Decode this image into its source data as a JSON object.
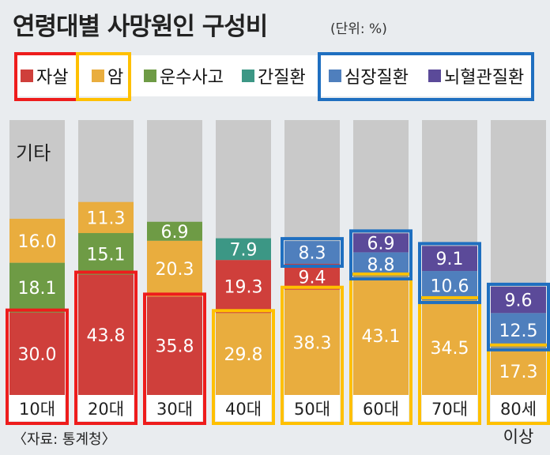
{
  "title": "연령대별 사망원인 구성비",
  "unit": "(단위: %)",
  "source": "〈자료: 통계청〉",
  "colors": {
    "suicide": "#cf3f3b",
    "cancer": "#e9ad3e",
    "traffic": "#6e9b45",
    "liver": "#3c9785",
    "heart": "#4f7fbd",
    "stroke": "#5b4a99",
    "other": "#c9c9c9",
    "highlight_red": "#ee1c1c",
    "highlight_yellow": "#ffc000",
    "highlight_blue": "#1f6fc0"
  },
  "legend": [
    {
      "key": "suicide",
      "label": "자살"
    },
    {
      "key": "cancer",
      "label": "암"
    },
    {
      "key": "traffic",
      "label": "운수사고"
    },
    {
      "key": "liver",
      "label": "간질환"
    },
    {
      "key": "heart",
      "label": "심장질환"
    },
    {
      "key": "stroke",
      "label": "뇌혈관질환"
    }
  ],
  "chart_data": {
    "type": "bar",
    "stacked": true,
    "categories": [
      "10대",
      "20대",
      "30대",
      "40대",
      "50대",
      "60대",
      "70대",
      "80세"
    ],
    "category_sublabels": [
      "",
      "",
      "",
      "",
      "",
      "",
      "",
      "이상"
    ],
    "other_label": "기타",
    "series": [
      {
        "key": "suicide",
        "name": "자살",
        "values": [
          30.0,
          43.8,
          35.8,
          19.3,
          9.4,
          null,
          null,
          null
        ],
        "labels": [
          "30.0",
          "43.8",
          "35.8",
          "19.3",
          "9.4",
          "",
          "",
          ""
        ]
      },
      {
        "key": "cancer",
        "name": "암",
        "values": [
          16.0,
          11.3,
          20.3,
          29.8,
          38.3,
          43.1,
          34.5,
          17.3
        ],
        "labels": [
          "16.0",
          "11.3",
          "20.3",
          "29.8",
          "38.3",
          "43.1",
          "34.5",
          "17.3"
        ]
      },
      {
        "key": "traffic",
        "name": "운수사고",
        "values": [
          18.1,
          15.1,
          6.9,
          null,
          null,
          null,
          null,
          null
        ],
        "labels": [
          "18.1",
          "15.1",
          "6.9",
          "",
          "",
          "",
          "",
          ""
        ]
      },
      {
        "key": "liver",
        "name": "간질환",
        "values": [
          null,
          null,
          null,
          7.9,
          null,
          null,
          null,
          null
        ],
        "labels": [
          "",
          "",
          "",
          "7.9",
          "",
          "",
          "",
          ""
        ]
      },
      {
        "key": "heart",
        "name": "심장질환",
        "values": [
          null,
          null,
          null,
          null,
          8.3,
          8.8,
          10.6,
          12.5
        ],
        "labels": [
          "",
          "",
          "",
          "",
          "8.3",
          "8.8",
          "10.6",
          "12.5"
        ]
      },
      {
        "key": "stroke",
        "name": "뇌혈관질환",
        "values": [
          null,
          null,
          null,
          null,
          null,
          6.9,
          9.1,
          9.6
        ],
        "labels": [
          "",
          "",
          "",
          "",
          "",
          "6.9",
          "9.1",
          "9.6"
        ]
      }
    ],
    "stack_order": [
      [
        "suicide",
        "traffic",
        "cancer"
      ],
      [
        "suicide",
        "traffic",
        "cancer"
      ],
      [
        "suicide",
        "cancer",
        "traffic"
      ],
      [
        "cancer",
        "suicide",
        "liver"
      ],
      [
        "cancer",
        "suicide",
        "heart"
      ],
      [
        "cancer",
        "heart",
        "stroke"
      ],
      [
        "cancer",
        "heart",
        "stroke"
      ],
      [
        "cancer",
        "heart",
        "stroke"
      ]
    ],
    "ylim": [
      0,
      100
    ],
    "grid": false
  }
}
